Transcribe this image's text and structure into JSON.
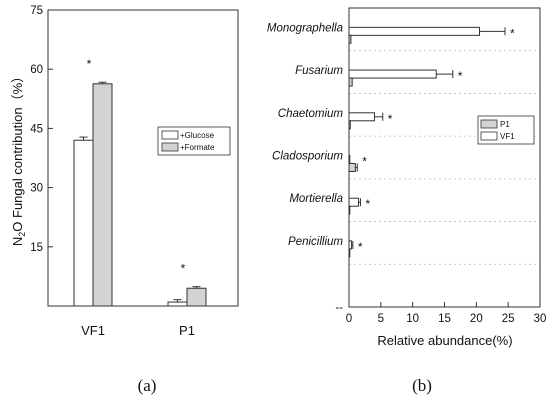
{
  "chart_data": [
    {
      "type": "bar",
      "panel_label": "(a)",
      "ylabel": "N",
      "ylabel_sub": "2",
      "ylabel_rest": "O Fungal contribution（%）",
      "xlabel": "",
      "categories": [
        "VF1",
        "P1"
      ],
      "ylim": [
        0,
        75
      ],
      "yticks": [
        15,
        30,
        45,
        60,
        75
      ],
      "series": [
        {
          "name": "+Glucose",
          "values": [
            42,
            1
          ],
          "errors": [
            0.8,
            0.6
          ],
          "color": "#ffffff"
        },
        {
          "name": "+Formate",
          "values": [
            56.3,
            4.5
          ],
          "errors": [
            0.4,
            0.4
          ],
          "color": "#d3d3d3"
        }
      ],
      "annotations": [
        "*",
        "*"
      ],
      "legend_position": "middle-right",
      "grid": false
    },
    {
      "type": "bar",
      "orientation": "horizontal",
      "panel_label": "(b)",
      "xlabel": "Relative abundance(%)",
      "ylabel": "",
      "categories": [
        "Monographella",
        "Fusarium",
        "Chaetomium",
        "Cladosporium",
        "Mortierella",
        "Penicillium"
      ],
      "xlim": [
        0,
        30
      ],
      "xticks": [
        0,
        5,
        10,
        15,
        20,
        25,
        30
      ],
      "y_extra_tick": "--",
      "series": [
        {
          "name": "P1",
          "values": [
            0.3,
            0.5,
            0.2,
            1.0,
            0.1,
            0.05
          ],
          "errors": [
            0,
            0,
            0,
            0.3,
            0,
            0
          ],
          "color": "#d3d3d3"
        },
        {
          "name": "VF1",
          "values": [
            20.5,
            13.7,
            4.0,
            0.1,
            1.5,
            0.4
          ],
          "errors": [
            4.0,
            2.6,
            1.3,
            0,
            0.3,
            0.2
          ],
          "color": "#ffffff"
        }
      ],
      "annotations": [
        "*",
        "*",
        "*",
        "*",
        "*",
        "*"
      ],
      "legend_position": "middle-right",
      "grid": true
    }
  ]
}
